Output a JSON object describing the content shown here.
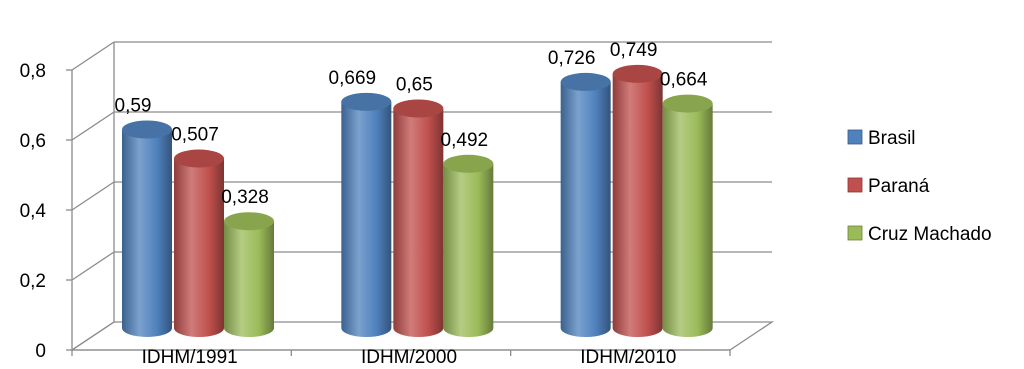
{
  "chart_data": {
    "type": "bar",
    "title": "",
    "xlabel": "",
    "ylabel": "",
    "categories": [
      "IDHM/1991",
      "IDHM/2000",
      "IDHM/2010"
    ],
    "series": [
      {
        "name": "Brasil",
        "values": [
          0.59,
          0.669,
          0.726
        ],
        "value_labels": [
          "0,59",
          "0,669",
          "0,726"
        ]
      },
      {
        "name": "Paraná",
        "values": [
          0.507,
          0.65,
          0.749
        ],
        "value_labels": [
          "0,507",
          "0,65",
          "0,749"
        ]
      },
      {
        "name": "Cruz Machado",
        "values": [
          0.328,
          0.492,
          0.664
        ],
        "value_labels": [
          "0,328",
          "0,492",
          "0,664"
        ]
      }
    ],
    "ylim": [
      0,
      0.8
    ],
    "yticks": [
      0,
      0.2,
      0.4,
      0.6,
      0.8
    ],
    "ytick_labels": [
      "0",
      "0,2",
      "0,4",
      "0,6",
      "0,8"
    ],
    "grid": true,
    "style": "3d-cylinder",
    "legend": "right",
    "colors": {
      "Brasil": "#4f81bd",
      "Paraná": "#c0504d",
      "Cruz Machado": "#9bbb59"
    }
  }
}
